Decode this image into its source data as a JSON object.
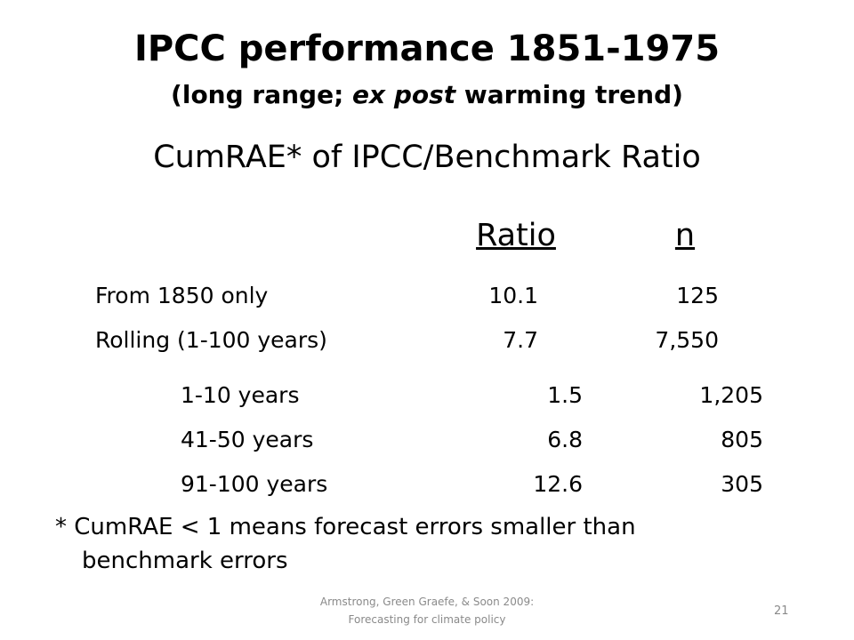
{
  "title": "IPCC performance 1851-1975",
  "subtitle": [
    "(long range; ",
    "ex post",
    " warming trend)"
  ],
  "heading": "CumRAE* of IPCC/Benchmark Ratio",
  "table": {
    "header": [
      "Ratio",
      "n"
    ],
    "rows": [
      [
        "From 1850 only",
        "10.1",
        "125"
      ],
      [
        "Rolling (1-100 years)",
        "7.7",
        "7,550"
      ]
    ],
    "subrows": [
      [
        "1-10 years",
        "1.5",
        "1,205"
      ],
      [
        "41-50 years",
        "6.8",
        "805"
      ],
      [
        "91-100 years",
        "12.6",
        "305"
      ]
    ]
  },
  "footnote": [
    "* CumRAE < 1 means forecast errors smaller than",
    "benchmark errors"
  ],
  "footer": [
    "Armstrong, Green Graefe, & Soon 2009:",
    "Forecasting for climate policy"
  ],
  "page_number": "21"
}
